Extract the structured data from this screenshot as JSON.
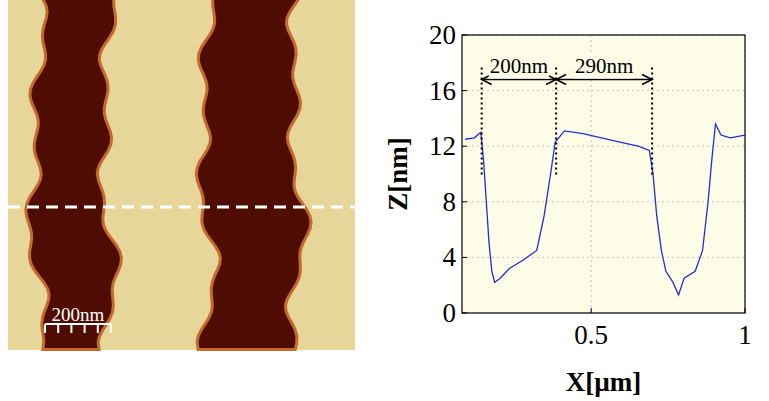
{
  "chart_data": {
    "type": "line",
    "x_label": "X[µm]",
    "y_label": "Z[nm]",
    "x": [
      0.09,
      0.12,
      0.141,
      0.15,
      0.159,
      0.168,
      0.177,
      0.186,
      0.204,
      0.234,
      0.278,
      0.323,
      0.347,
      0.368,
      0.383,
      0.413,
      0.473,
      0.533,
      0.593,
      0.653,
      0.689,
      0.701,
      0.713,
      0.728,
      0.743,
      0.766,
      0.784,
      0.802,
      0.838,
      0.862,
      0.88,
      0.892,
      0.904,
      0.922,
      0.952,
      1.0
    ],
    "values": [
      12.5,
      12.6,
      13.0,
      11.0,
      8.0,
      5.0,
      3.0,
      2.2,
      2.5,
      3.2,
      3.8,
      4.5,
      7.0,
      10.0,
      12.3,
      13.1,
      12.9,
      12.6,
      12.3,
      12.0,
      11.7,
      10.0,
      7.0,
      4.5,
      3.0,
      2.2,
      1.3,
      2.5,
      3.0,
      4.5,
      8.0,
      11.0,
      13.6,
      12.8,
      12.6,
      12.8
    ],
    "color": "#2030d0",
    "xlim": [
      0.08,
      1.0
    ],
    "xticks": [
      0.5,
      1
    ],
    "ylim": [
      0,
      20
    ],
    "yticks": [
      0,
      4,
      8,
      12,
      16,
      20
    ],
    "grid": true,
    "annotations": [
      {
        "text": "200nm",
        "x": [
          0.144,
          0.386
        ],
        "y": 16.8
      },
      {
        "text": "290nm",
        "x": [
          0.386,
          0.698
        ],
        "y": 16.8
      }
    ]
  },
  "image": {
    "scale_bar": "200nm"
  }
}
